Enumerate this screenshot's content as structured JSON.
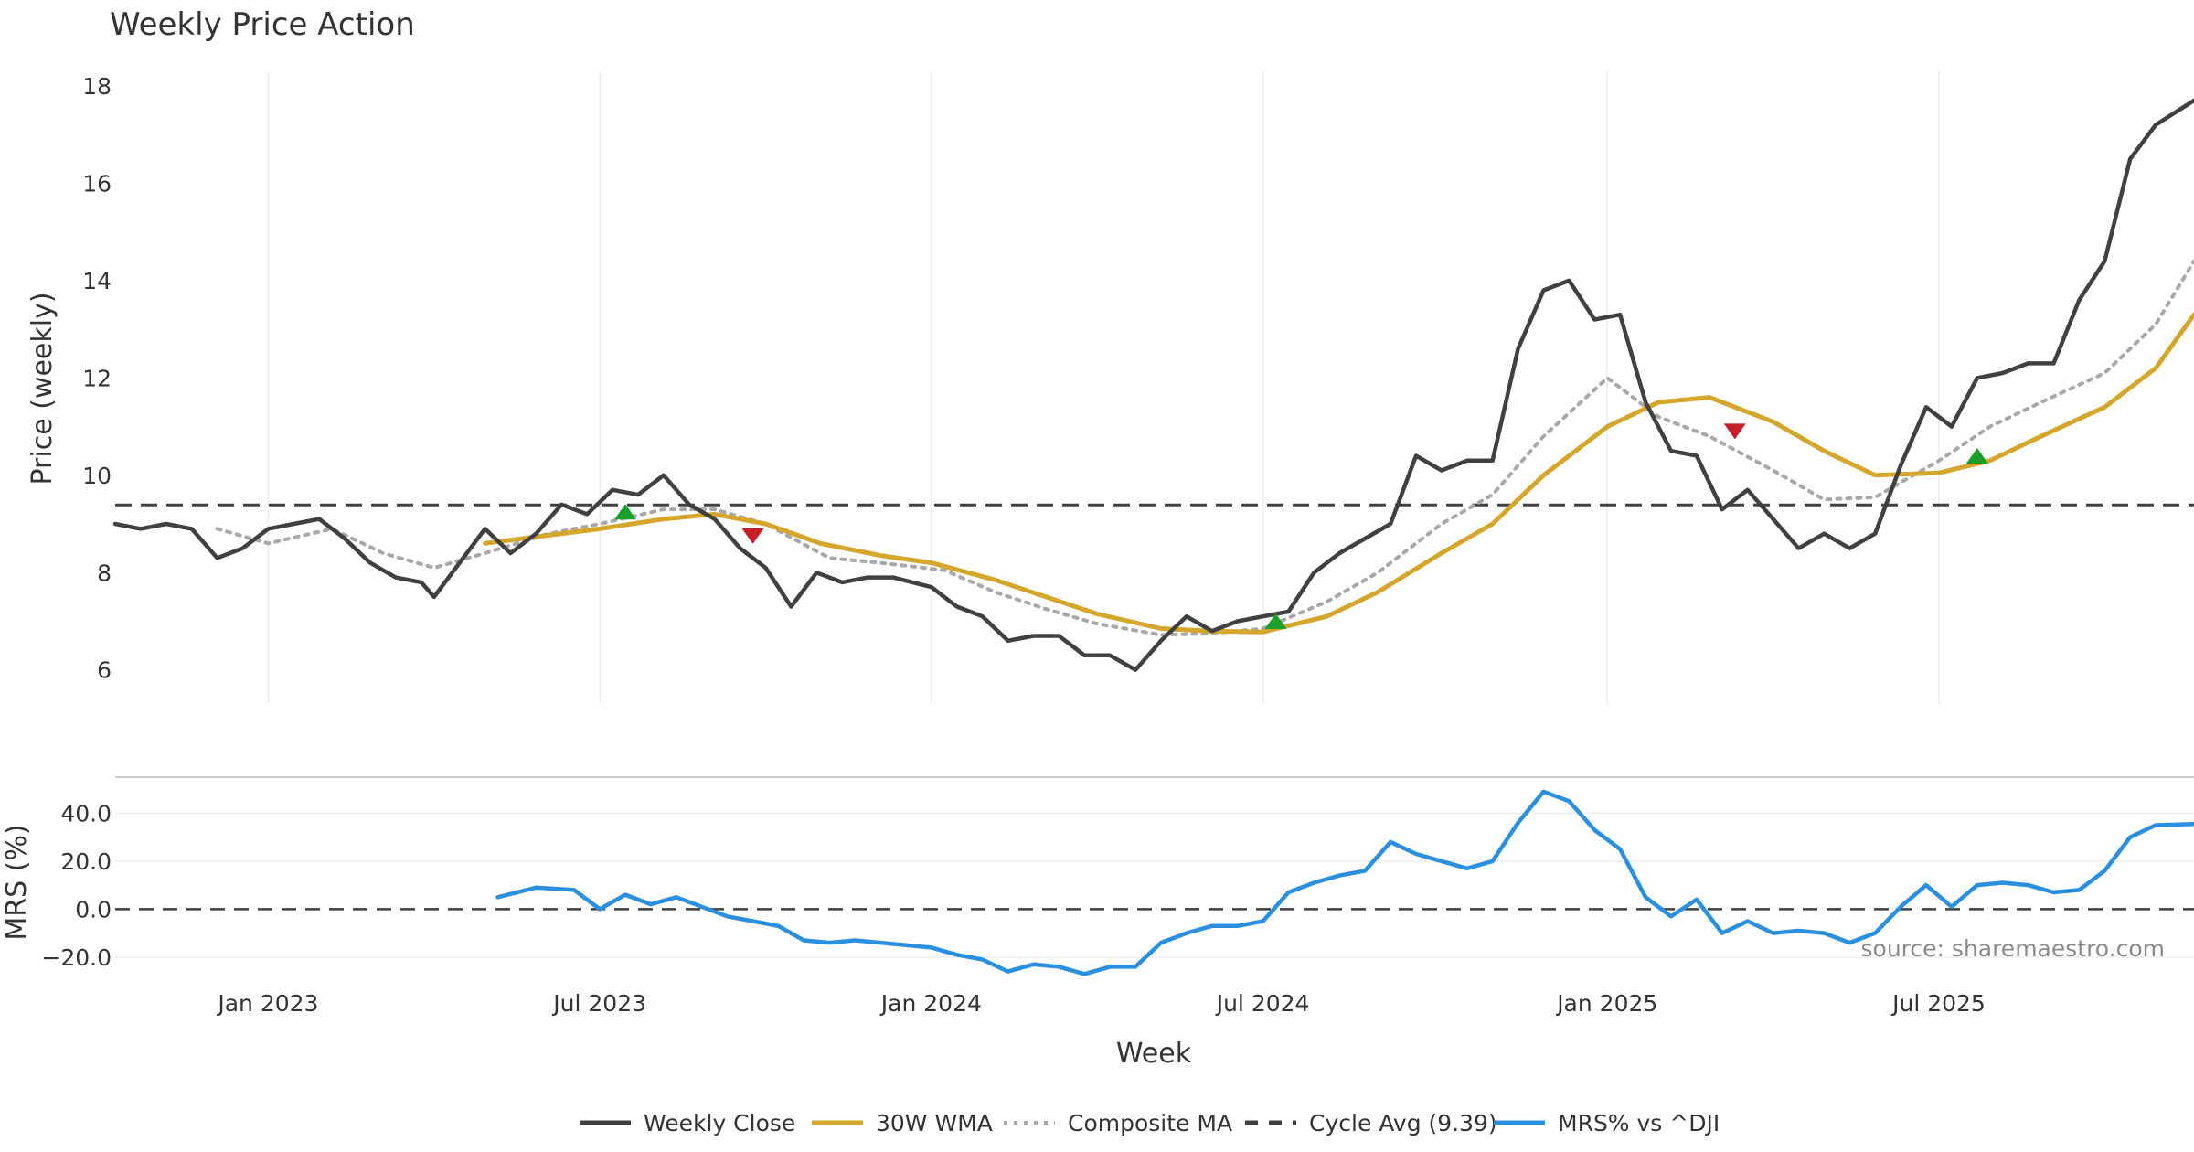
{
  "chart_data": {
    "type": "line",
    "title": "Weekly Price Action",
    "source": "source: sharemaestro.com",
    "xlabel": "Week",
    "x_range": [
      "2022-10-10",
      "2025-11-24"
    ],
    "x_ticks": [
      {
        "date": "2023-01-02",
        "label": "Jan 2023"
      },
      {
        "date": "2023-07-03",
        "label": "Jul 2023"
      },
      {
        "date": "2024-01-01",
        "label": "Jan 2024"
      },
      {
        "date": "2024-07-01",
        "label": "Jul 2024"
      },
      {
        "date": "2025-01-06",
        "label": "Jan 2025"
      },
      {
        "date": "2025-07-07",
        "label": "Jul 2025"
      }
    ],
    "price_panel": {
      "ylabel": "Price (weekly)",
      "ylim": [
        5.3,
        18.3
      ],
      "yticks": [
        6,
        8,
        10,
        12,
        14,
        16,
        18
      ],
      "cycle_avg": 9.39,
      "series": [
        {
          "name": "Weekly Close",
          "color": "#404040",
          "style": "solid",
          "points": [
            [
              "2022-10-10",
              9.0
            ],
            [
              "2022-10-24",
              8.9
            ],
            [
              "2022-11-07",
              9.0
            ],
            [
              "2022-11-21",
              8.9
            ],
            [
              "2022-12-05",
              8.3
            ],
            [
              "2022-12-19",
              8.5
            ],
            [
              "2023-01-02",
              8.9
            ],
            [
              "2023-01-16",
              9.0
            ],
            [
              "2023-01-30",
              9.1
            ],
            [
              "2023-02-13",
              8.7
            ],
            [
              "2023-02-27",
              8.2
            ],
            [
              "2023-03-13",
              7.9
            ],
            [
              "2023-03-27",
              7.8
            ],
            [
              "2023-04-03",
              7.5
            ],
            [
              "2023-04-17",
              8.2
            ],
            [
              "2023-05-01",
              8.9
            ],
            [
              "2023-05-15",
              8.4
            ],
            [
              "2023-05-29",
              8.8
            ],
            [
              "2023-06-12",
              9.4
            ],
            [
              "2023-06-26",
              9.2
            ],
            [
              "2023-07-10",
              9.7
            ],
            [
              "2023-07-24",
              9.6
            ],
            [
              "2023-08-07",
              10.0
            ],
            [
              "2023-08-21",
              9.4
            ],
            [
              "2023-09-04",
              9.1
            ],
            [
              "2023-09-18",
              8.5
            ],
            [
              "2023-10-02",
              8.1
            ],
            [
              "2023-10-16",
              7.3
            ],
            [
              "2023-10-30",
              8.0
            ],
            [
              "2023-11-13",
              7.8
            ],
            [
              "2023-11-27",
              7.9
            ],
            [
              "2023-12-11",
              7.9
            ],
            [
              "2024-01-01",
              7.7
            ],
            [
              "2024-01-15",
              7.3
            ],
            [
              "2024-01-29",
              7.1
            ],
            [
              "2024-02-12",
              6.6
            ],
            [
              "2024-02-26",
              6.7
            ],
            [
              "2024-03-11",
              6.7
            ],
            [
              "2024-03-25",
              6.3
            ],
            [
              "2024-04-08",
              6.3
            ],
            [
              "2024-04-22",
              6.0
            ],
            [
              "2024-05-06",
              6.6
            ],
            [
              "2024-05-20",
              7.1
            ],
            [
              "2024-06-03",
              6.8
            ],
            [
              "2024-06-17",
              7.0
            ],
            [
              "2024-07-01",
              7.1
            ],
            [
              "2024-07-15",
              7.2
            ],
            [
              "2024-07-29",
              8.0
            ],
            [
              "2024-08-12",
              8.4
            ],
            [
              "2024-08-26",
              8.7
            ],
            [
              "2024-09-09",
              9.0
            ],
            [
              "2024-09-23",
              10.4
            ],
            [
              "2024-10-07",
              10.1
            ],
            [
              "2024-10-21",
              10.3
            ],
            [
              "2024-11-04",
              10.3
            ],
            [
              "2024-11-18",
              12.6
            ],
            [
              "2024-12-02",
              13.8
            ],
            [
              "2024-12-16",
              14.0
            ],
            [
              "2024-12-30",
              13.2
            ],
            [
              "2025-01-13",
              13.3
            ],
            [
              "2025-01-27",
              11.5
            ],
            [
              "2025-02-10",
              10.5
            ],
            [
              "2025-02-24",
              10.4
            ],
            [
              "2025-03-10",
              9.3
            ],
            [
              "2025-03-24",
              9.7
            ],
            [
              "2025-04-07",
              9.1
            ],
            [
              "2025-04-21",
              8.5
            ],
            [
              "2025-05-05",
              8.8
            ],
            [
              "2025-05-19",
              8.5
            ],
            [
              "2025-06-02",
              8.8
            ],
            [
              "2025-06-16",
              10.2
            ],
            [
              "2025-06-30",
              11.4
            ],
            [
              "2025-07-14",
              11.0
            ],
            [
              "2025-07-28",
              12.0
            ],
            [
              "2025-08-11",
              12.1
            ],
            [
              "2025-08-25",
              12.3
            ],
            [
              "2025-09-08",
              12.3
            ],
            [
              "2025-09-22",
              13.6
            ],
            [
              "2025-10-06",
              14.4
            ],
            [
              "2025-10-20",
              16.5
            ],
            [
              "2025-11-03",
              17.2
            ],
            [
              "2025-11-24",
              17.7
            ]
          ]
        },
        {
          "name": "30W WMA",
          "color": "#d4a72c",
          "style": "solid",
          "points": [
            [
              "2023-05-01",
              8.6
            ],
            [
              "2023-06-01",
              8.75
            ],
            [
              "2023-07-03",
              8.9
            ],
            [
              "2023-08-07",
              9.1
            ],
            [
              "2023-09-04",
              9.2
            ],
            [
              "2023-10-02",
              9.0
            ],
            [
              "2023-11-01",
              8.6
            ],
            [
              "2023-12-04",
              8.35
            ],
            [
              "2024-01-01",
              8.2
            ],
            [
              "2024-02-05",
              7.85
            ],
            [
              "2024-03-04",
              7.5
            ],
            [
              "2024-04-01",
              7.15
            ],
            [
              "2024-05-06",
              6.85
            ],
            [
              "2024-06-03",
              6.8
            ],
            [
              "2024-07-01",
              6.78
            ],
            [
              "2024-08-05",
              7.1
            ],
            [
              "2024-09-02",
              7.6
            ],
            [
              "2024-10-07",
              8.4
            ],
            [
              "2024-11-04",
              9.0
            ],
            [
              "2024-12-02",
              10.0
            ],
            [
              "2025-01-06",
              11.0
            ],
            [
              "2025-02-03",
              11.5
            ],
            [
              "2025-03-03",
              11.6
            ],
            [
              "2025-04-07",
              11.1
            ],
            [
              "2025-05-05",
              10.5
            ],
            [
              "2025-06-02",
              10.0
            ],
            [
              "2025-07-07",
              10.05
            ],
            [
              "2025-08-04",
              10.3
            ],
            [
              "2025-09-01",
              10.8
            ],
            [
              "2025-10-06",
              11.4
            ],
            [
              "2025-11-03",
              12.2
            ],
            [
              "2025-11-24",
              13.3
            ]
          ]
        },
        {
          "name": "Composite MA",
          "color": "#a8a8a8",
          "style": "dotted",
          "points": [
            [
              "2022-12-05",
              8.9
            ],
            [
              "2023-01-02",
              8.6
            ],
            [
              "2023-02-06",
              8.9
            ],
            [
              "2023-03-06",
              8.4
            ],
            [
              "2023-04-03",
              8.1
            ],
            [
              "2023-05-01",
              8.4
            ],
            [
              "2023-06-05",
              8.8
            ],
            [
              "2023-07-03",
              9.0
            ],
            [
              "2023-08-07",
              9.3
            ],
            [
              "2023-09-04",
              9.3
            ],
            [
              "2023-10-02",
              9.0
            ],
            [
              "2023-11-06",
              8.3
            ],
            [
              "2023-12-04",
              8.2
            ],
            [
              "2024-01-08",
              8.05
            ],
            [
              "2024-02-05",
              7.6
            ],
            [
              "2024-03-04",
              7.25
            ],
            [
              "2024-04-01",
              6.95
            ],
            [
              "2024-05-06",
              6.72
            ],
            [
              "2024-06-03",
              6.75
            ],
            [
              "2024-07-01",
              6.85
            ],
            [
              "2024-08-05",
              7.4
            ],
            [
              "2024-09-02",
              8.0
            ],
            [
              "2024-10-07",
              9.0
            ],
            [
              "2024-11-04",
              9.6
            ],
            [
              "2024-12-02",
              10.8
            ],
            [
              "2025-01-06",
              12.0
            ],
            [
              "2025-02-03",
              11.2
            ],
            [
              "2025-03-03",
              10.8
            ],
            [
              "2025-04-07",
              10.1
            ],
            [
              "2025-05-05",
              9.5
            ],
            [
              "2025-06-02",
              9.55
            ],
            [
              "2025-07-07",
              10.3
            ],
            [
              "2025-08-04",
              11.0
            ],
            [
              "2025-09-01",
              11.5
            ],
            [
              "2025-10-06",
              12.1
            ],
            [
              "2025-11-03",
              13.1
            ],
            [
              "2025-11-24",
              14.4
            ]
          ]
        },
        {
          "name": "Cycle Avg (9.39)",
          "color": "#404040",
          "style": "dashed",
          "points": [
            [
              "2022-10-10",
              9.39
            ],
            [
              "2025-11-24",
              9.39
            ]
          ]
        }
      ],
      "signals": [
        {
          "date": "2023-07-17",
          "value": 9.25,
          "direction": "up",
          "color": "#1a9f2a"
        },
        {
          "date": "2023-09-25",
          "value": 8.75,
          "direction": "down",
          "color": "#c81e28"
        },
        {
          "date": "2024-07-08",
          "value": 7.0,
          "direction": "up",
          "color": "#1a9f2a"
        },
        {
          "date": "2025-03-17",
          "value": 10.9,
          "direction": "down",
          "color": "#c81e28"
        },
        {
          "date": "2025-07-28",
          "value": 10.4,
          "direction": "up",
          "color": "#1a9f2a"
        }
      ]
    },
    "mrs_panel": {
      "ylabel": "MRS (%)",
      "ylim": [
        -25,
        55
      ],
      "yticks": [
        {
          "value": -20,
          "label": "−20.0"
        },
        {
          "value": 0,
          "label": "0.0"
        },
        {
          "value": 20,
          "label": "20.0"
        },
        {
          "value": 40,
          "label": "40.0"
        }
      ],
      "series": [
        {
          "name": "MRS% vs ^DJI",
          "color": "#2b8fe0",
          "points": [
            [
              "2023-05-08",
              5
            ],
            [
              "2023-05-29",
              9
            ],
            [
              "2023-06-19",
              8
            ],
            [
              "2023-07-03",
              0
            ],
            [
              "2023-07-17",
              6
            ],
            [
              "2023-07-31",
              2
            ],
            [
              "2023-08-14",
              5
            ],
            [
              "2023-08-28",
              1
            ],
            [
              "2023-09-11",
              -3
            ],
            [
              "2023-09-25",
              -5
            ],
            [
              "2023-10-09",
              -7
            ],
            [
              "2023-10-23",
              -13
            ],
            [
              "2023-11-06",
              -14
            ],
            [
              "2023-11-20",
              -13
            ],
            [
              "2023-12-04",
              -14
            ],
            [
              "2023-12-18",
              -15
            ],
            [
              "2024-01-01",
              -16
            ],
            [
              "2024-01-15",
              -19
            ],
            [
              "2024-01-29",
              -21
            ],
            [
              "2024-02-12",
              -26
            ],
            [
              "2024-02-26",
              -23
            ],
            [
              "2024-03-11",
              -24
            ],
            [
              "2024-03-25",
              -27
            ],
            [
              "2024-04-08",
              -24
            ],
            [
              "2024-04-22",
              -24
            ],
            [
              "2024-05-06",
              -14
            ],
            [
              "2024-05-20",
              -10
            ],
            [
              "2024-06-03",
              -7
            ],
            [
              "2024-06-17",
              -7
            ],
            [
              "2024-07-01",
              -5
            ],
            [
              "2024-07-15",
              7
            ],
            [
              "2024-07-29",
              11
            ],
            [
              "2024-08-12",
              14
            ],
            [
              "2024-08-26",
              16
            ],
            [
              "2024-09-09",
              28
            ],
            [
              "2024-09-23",
              23
            ],
            [
              "2024-10-07",
              20
            ],
            [
              "2024-10-21",
              17
            ],
            [
              "2024-11-04",
              20
            ],
            [
              "2024-11-18",
              36
            ],
            [
              "2024-12-02",
              49
            ],
            [
              "2024-12-16",
              45
            ],
            [
              "2024-12-30",
              33
            ],
            [
              "2025-01-13",
              25
            ],
            [
              "2025-01-27",
              5
            ],
            [
              "2025-02-10",
              -3
            ],
            [
              "2025-02-24",
              4
            ],
            [
              "2025-03-10",
              -10
            ],
            [
              "2025-03-24",
              -5
            ],
            [
              "2025-04-07",
              -10
            ],
            [
              "2025-04-21",
              -9
            ],
            [
              "2025-05-05",
              -10
            ],
            [
              "2025-05-19",
              -14
            ],
            [
              "2025-06-02",
              -10
            ],
            [
              "2025-06-16",
              1
            ],
            [
              "2025-06-30",
              10
            ],
            [
              "2025-07-14",
              1
            ],
            [
              "2025-07-28",
              10
            ],
            [
              "2025-08-11",
              11
            ],
            [
              "2025-08-25",
              10
            ],
            [
              "2025-09-08",
              7
            ],
            [
              "2025-09-22",
              8
            ],
            [
              "2025-10-06",
              16
            ],
            [
              "2025-10-20",
              30
            ],
            [
              "2025-11-03",
              35
            ],
            [
              "2025-11-24",
              35.5
            ]
          ]
        }
      ]
    },
    "legend": {
      "placement": "bottom-center",
      "entries": [
        {
          "label": "Weekly Close",
          "color": "#404040",
          "style": "solid"
        },
        {
          "label": "30W WMA",
          "color": "#d4a72c",
          "style": "solid"
        },
        {
          "label": "Composite MA",
          "color": "#a8a8a8",
          "style": "dotted"
        },
        {
          "label": "Cycle Avg (9.39)",
          "color": "#404040",
          "style": "dashed"
        },
        {
          "label": "MRS% vs ^DJI",
          "color": "#2b8fe0",
          "style": "solid"
        }
      ]
    }
  }
}
